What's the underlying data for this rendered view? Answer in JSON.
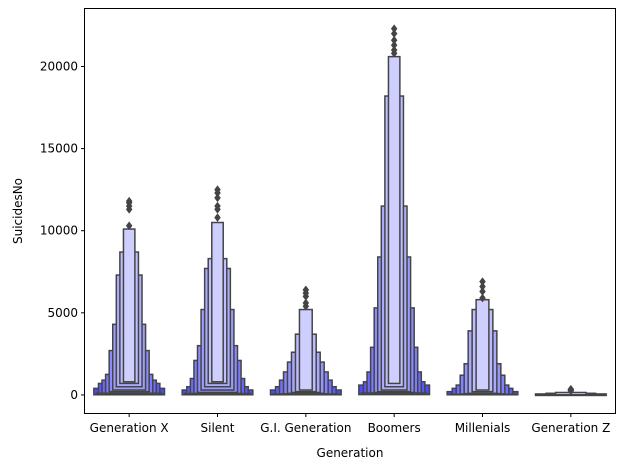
{
  "chart_data": {
    "type": "boxen",
    "xlabel": "Generation",
    "ylabel": "SuicidesNo",
    "ylim": [
      -1100,
      23500
    ],
    "yticks": [
      0,
      5000,
      10000,
      15000,
      20000
    ],
    "ytick_labels": [
      "0",
      "5000",
      "10000",
      "15000",
      "20000"
    ],
    "grid": false,
    "legend": "none",
    "base_color": "#4040ff",
    "edge_color": "#444444",
    "categories": [
      "Generation X",
      "Silent",
      "G.I. Generation",
      "Boomers",
      "Millenials",
      "Generation Z"
    ],
    "series": [
      {
        "category": "Generation X",
        "boxes": [
          [
            10,
            400
          ],
          [
            40,
            700
          ],
          [
            60,
            900
          ],
          [
            100,
            1250
          ],
          [
            200,
            2700
          ],
          [
            300,
            4300
          ],
          [
            500,
            7300
          ],
          [
            700,
            8700
          ],
          [
            800,
            10100
          ]
        ],
        "median": 100,
        "outliers": [
          10300,
          11300,
          11500,
          11700,
          11800
        ]
      },
      {
        "category": "Silent",
        "boxes": [
          [
            10,
            300
          ],
          [
            30,
            500
          ],
          [
            50,
            1000
          ],
          [
            90,
            2100
          ],
          [
            150,
            3000
          ],
          [
            300,
            5200
          ],
          [
            500,
            7700
          ],
          [
            700,
            8300
          ],
          [
            800,
            10500
          ]
        ],
        "median": 90,
        "outliers": [
          10800,
          11300,
          11500,
          12000,
          12300,
          12500
        ]
      },
      {
        "category": "G.I. Generation",
        "boxes": [
          [
            10,
            300
          ],
          [
            30,
            500
          ],
          [
            50,
            900
          ],
          [
            70,
            1400
          ],
          [
            100,
            2000
          ],
          [
            150,
            2600
          ],
          [
            200,
            3700
          ],
          [
            300,
            5200
          ]
        ],
        "median": 60,
        "outliers": [
          5400,
          5600,
          6000,
          6200,
          6400
        ]
      },
      {
        "category": "Boomers",
        "boxes": [
          [
            20,
            600
          ],
          [
            40,
            800
          ],
          [
            60,
            1400
          ],
          [
            100,
            2900
          ],
          [
            150,
            5300
          ],
          [
            200,
            8400
          ],
          [
            300,
            11500
          ],
          [
            500,
            18200
          ],
          [
            700,
            20600
          ]
        ],
        "median": 120,
        "outliers": [
          20800,
          21000,
          21300,
          21600,
          22000,
          22300
        ]
      },
      {
        "category": "Millenials",
        "boxes": [
          [
            10,
            200
          ],
          [
            20,
            400
          ],
          [
            40,
            600
          ],
          [
            60,
            1200
          ],
          [
            80,
            1900
          ],
          [
            100,
            3900
          ],
          [
            200,
            5200
          ],
          [
            300,
            5800
          ]
        ],
        "median": 40,
        "outliers": [
          5900,
          6300,
          6600,
          6900
        ]
      },
      {
        "category": "Generation Z",
        "boxes": [
          [
            0,
            60
          ],
          [
            5,
            100
          ],
          [
            10,
            150
          ]
        ],
        "median": 10,
        "outliers": [
          250,
          300,
          350
        ]
      }
    ]
  }
}
